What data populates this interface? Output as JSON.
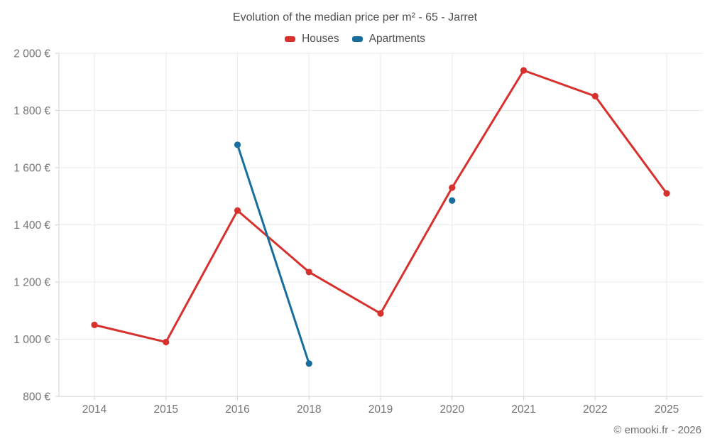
{
  "footer": {
    "copyright": "© emooki.fr - 2026"
  },
  "chart_data": {
    "type": "line",
    "title": "Evolution of the median price per m² - 65 - Jarret",
    "xlabel": "",
    "ylabel": "",
    "categories": [
      "2014",
      "2015",
      "2016",
      "2018",
      "2019",
      "2020",
      "2021",
      "2022",
      "2025"
    ],
    "series": [
      {
        "name": "Houses",
        "color": "#d8312d",
        "values": [
          1050,
          990,
          1450,
          1235,
          1090,
          1530,
          1940,
          1850,
          1510
        ]
      },
      {
        "name": "Apartments",
        "color": "#176e9e",
        "values": [
          null,
          null,
          1680,
          915,
          null,
          1485,
          null,
          null,
          null
        ]
      }
    ],
    "ylim": [
      800,
      2000
    ],
    "yticks": [
      {
        "value": 800,
        "label": "800 €"
      },
      {
        "value": 1000,
        "label": "1 000 €"
      },
      {
        "value": 1200,
        "label": "1 200 €"
      },
      {
        "value": 1400,
        "label": "1 400 €"
      },
      {
        "value": 1600,
        "label": "1 600 €"
      },
      {
        "value": 1800,
        "label": "1 800 €"
      },
      {
        "value": 2000,
        "label": "2 000 €"
      }
    ],
    "grid": true,
    "legend_position": "top"
  }
}
